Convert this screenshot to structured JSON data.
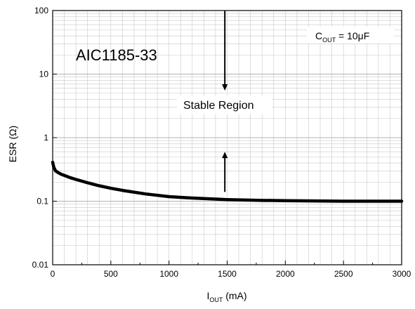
{
  "chart_data": {
    "type": "line",
    "title": "",
    "xlabel": {
      "main": "I",
      "sub": "OUT",
      "suffix": " (mA)"
    },
    "ylabel": "ESR (Ω)",
    "xlim": [
      0,
      3000
    ],
    "ylim": [
      0.01,
      100
    ],
    "y_scale": "log",
    "grid": true,
    "x_ticks": [
      0,
      500,
      1000,
      1500,
      2000,
      2500,
      3000
    ],
    "x_tick_labels": [
      "0",
      "500",
      "1000",
      "1500",
      "2000",
      "2500",
      "3000"
    ],
    "y_ticks": [
      0.01,
      0.1,
      1,
      10,
      100
    ],
    "y_tick_labels": [
      "0.01",
      "0.1",
      "1",
      "10",
      "100"
    ],
    "series": [
      {
        "x": [
          0,
          10,
          25,
          50,
          75,
          100,
          150,
          200,
          300,
          400,
          500,
          600,
          800,
          1000,
          1200,
          1500,
          1800,
          2000,
          2500,
          3000
        ],
        "y": [
          0.41,
          0.34,
          0.3,
          0.28,
          0.265,
          0.255,
          0.235,
          0.22,
          0.195,
          0.175,
          0.16,
          0.148,
          0.13,
          0.118,
          0.112,
          0.106,
          0.103,
          0.102,
          0.1,
          0.1
        ],
        "color": "#000000"
      }
    ],
    "annotations": {
      "device": "AIC1185-33",
      "region": "Stable Region",
      "cout_main": "C",
      "cout_sub": "OUT",
      "cout_value": " = 10μF",
      "arrow_x": 1480,
      "arrow_down": [
        100,
        5.5
      ],
      "arrow_up": [
        0.14,
        0.6
      ]
    }
  }
}
